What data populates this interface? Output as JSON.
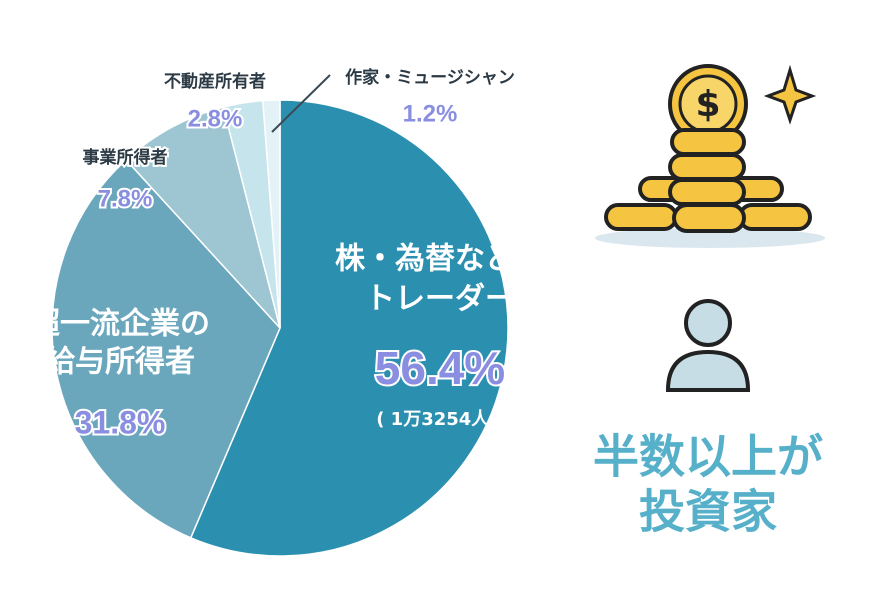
{
  "chart_data": {
    "type": "pie",
    "labels": [
      [
        "株・為替などの",
        "トレーダー"
      ],
      [
        "超一流企業の",
        "給与所得者"
      ],
      [
        "事業所得者"
      ],
      [
        "不動産所有者"
      ],
      [
        "作家・ミュージシャン"
      ]
    ],
    "values": [
      56.4,
      31.8,
      7.8,
      2.8,
      1.2
    ],
    "value_labels": [
      "56.4%",
      "31.8%",
      "7.8%",
      "2.8%",
      "1.2%"
    ],
    "colors": [
      "#2b8fb0",
      "#6aa7bd",
      "#9dc6d2",
      "#c6e4ec",
      "#e2f2f6"
    ],
    "annotation": "( 1万3254人 )"
  },
  "headline": [
    "半数以上が",
    "投資家"
  ]
}
